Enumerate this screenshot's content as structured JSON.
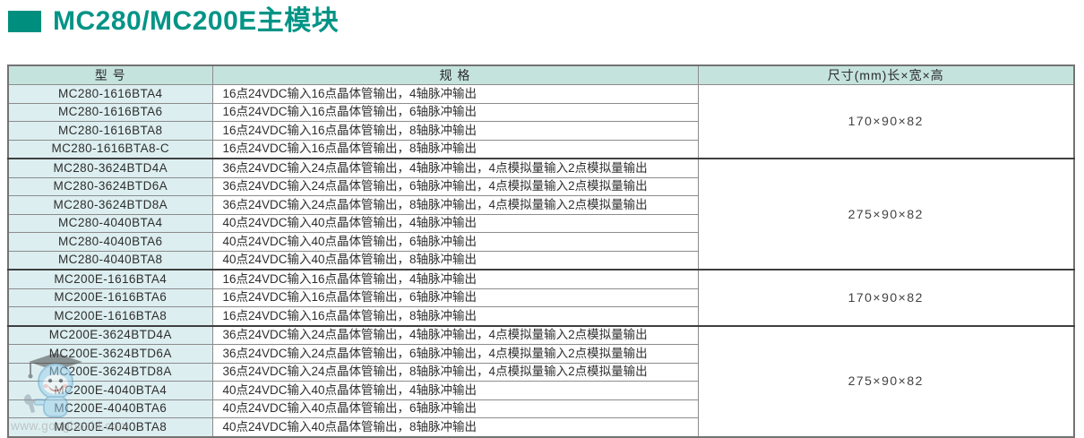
{
  "page": {
    "title": "MC280/MC200E主模块",
    "accent_color": "#008F7E",
    "header_bg": "#C5E3DD",
    "model_cell_bg": "#DCEEF0"
  },
  "watermark": {
    "icon": "mascot-robot-with-graduation-cap-and-wrench",
    "url_text": "www.gongboshi.com"
  },
  "table": {
    "headers": {
      "model": "型 号",
      "spec": "规 格",
      "dimension": "尺寸(mm)长×宽×高"
    },
    "groups": [
      {
        "dimension": "170×90×82",
        "rows": [
          {
            "model": "MC280-1616BTA4",
            "spec": "16点24VDC输入16点晶体管输出，4轴脉冲输出"
          },
          {
            "model": "MC280-1616BTA6",
            "spec": "16点24VDC输入16点晶体管输出，6轴脉冲输出"
          },
          {
            "model": "MC280-1616BTA8",
            "spec": "16点24VDC输入16点晶体管输出，8轴脉冲输出"
          },
          {
            "model": "MC280-1616BTA8-C",
            "spec": "16点24VDC输入16点晶体管输出，8轴脉冲输出"
          }
        ]
      },
      {
        "dimension": "275×90×82",
        "rows": [
          {
            "model": "MC280-3624BTD4A",
            "spec": "36点24VDC输入24点晶体管输出，4轴脉冲输出，4点模拟量输入2点模拟量输出"
          },
          {
            "model": "MC280-3624BTD6A",
            "spec": "36点24VDC输入24点晶体管输出，6轴脉冲输出，4点模拟量输入2点模拟量输出"
          },
          {
            "model": "MC280-3624BTD8A",
            "spec": "36点24VDC输入24点晶体管输出，8轴脉冲输出，4点模拟量输入2点模拟量输出"
          },
          {
            "model": "MC280-4040BTA4",
            "spec": "40点24VDC输入40点晶体管输出，4轴脉冲输出"
          },
          {
            "model": "MC280-4040BTA6",
            "spec": "40点24VDC输入40点晶体管输出，6轴脉冲输出"
          },
          {
            "model": "MC280-4040BTA8",
            "spec": "40点24VDC输入40点晶体管输出，8轴脉冲输出"
          }
        ]
      },
      {
        "dimension": "170×90×82",
        "rows": [
          {
            "model": "MC200E-1616BTA4",
            "spec": "16点24VDC输入16点晶体管输出，4轴脉冲输出"
          },
          {
            "model": "MC200E-1616BTA6",
            "spec": "16点24VDC输入16点晶体管输出，6轴脉冲输出"
          },
          {
            "model": "MC200E-1616BTA8",
            "spec": "16点24VDC输入16点晶体管输出，8轴脉冲输出"
          }
        ]
      },
      {
        "dimension": "275×90×82",
        "rows": [
          {
            "model": "MC200E-3624BTD4A",
            "spec": "36点24VDC输入24点晶体管输出，4轴脉冲输出，4点模拟量输入2点模拟量输出"
          },
          {
            "model": "MC200E-3624BTD6A",
            "spec": "36点24VDC输入24点晶体管输出，6轴脉冲输出，4点模拟量输入2点模拟量输出"
          },
          {
            "model": "MC200E-3624BTD8A",
            "spec": "36点24VDC输入24点晶体管输出，8轴脉冲输出，4点模拟量输入2点模拟量输出"
          },
          {
            "model": "MC200E-4040BTA4",
            "spec": "40点24VDC输入40点晶体管输出，4轴脉冲输出"
          },
          {
            "model": "MC200E-4040BTA6",
            "spec": "40点24VDC输入40点晶体管输出，6轴脉冲输出"
          },
          {
            "model": "MC200E-4040BTA8",
            "spec": "40点24VDC输入40点晶体管输出，8轴脉冲输出"
          }
        ]
      }
    ]
  }
}
